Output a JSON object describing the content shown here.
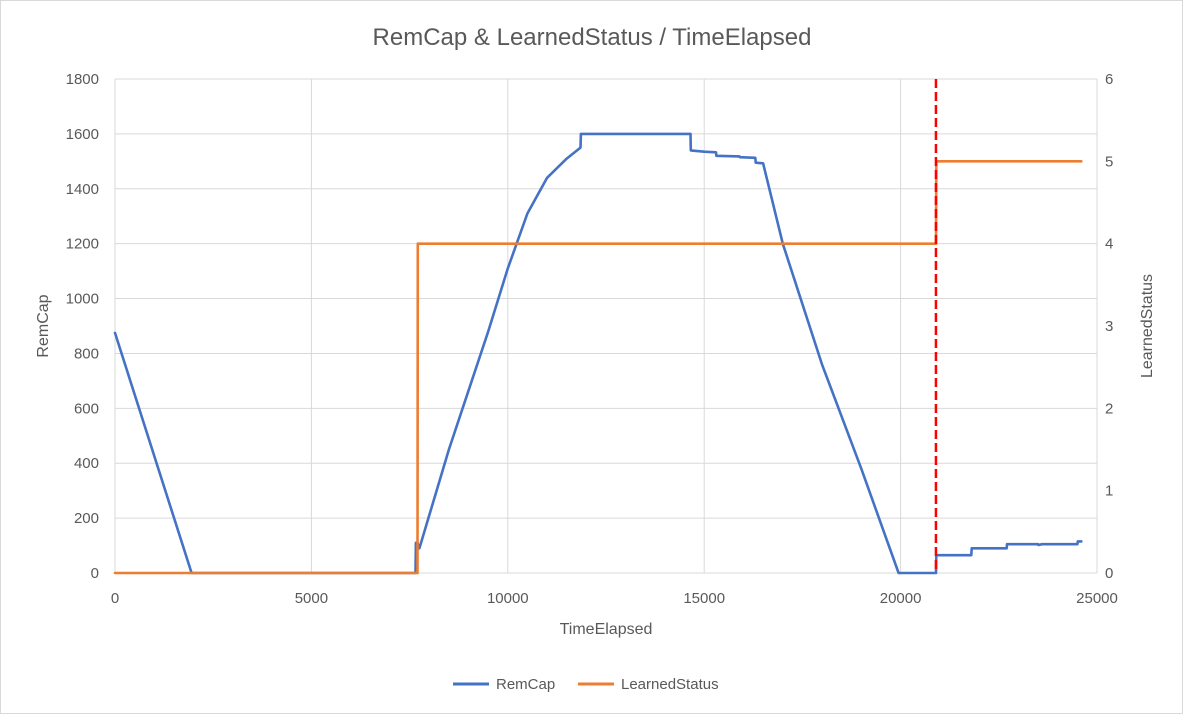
{
  "chart_data": {
    "type": "line",
    "title": "RemCap & LearnedStatus / TimeElapsed",
    "xlabel": "TimeElapsed",
    "ylabel": "RemCap",
    "y2label": "LearnedStatus",
    "xlim": [
      0,
      25000
    ],
    "ylim": [
      0,
      1800
    ],
    "y2lim": [
      0,
      6
    ],
    "xticks": [
      "0",
      "5000",
      "10000",
      "15000",
      "20000",
      "25000"
    ],
    "yticks": [
      "0",
      "200",
      "400",
      "600",
      "800",
      "1000",
      "1200",
      "1400",
      "1600",
      "1800"
    ],
    "y2ticks": [
      "0",
      "1",
      "2",
      "3",
      "4",
      "5",
      "6"
    ],
    "grid": true,
    "legend_position": "bottom",
    "series": [
      {
        "name": "RemCap",
        "axis": "left",
        "color": "#4472c4",
        "points": [
          [
            0,
            875
          ],
          [
            1950,
            0
          ],
          [
            7650,
            0
          ],
          [
            7660,
            110
          ],
          [
            7700,
            110
          ],
          [
            7750,
            90
          ],
          [
            8500,
            450
          ],
          [
            9500,
            880
          ],
          [
            10000,
            1110
          ],
          [
            10500,
            1310
          ],
          [
            11000,
            1440
          ],
          [
            11500,
            1510
          ],
          [
            11850,
            1550
          ],
          [
            11860,
            1600
          ],
          [
            14650,
            1600
          ],
          [
            14660,
            1540
          ],
          [
            15000,
            1535
          ],
          [
            15300,
            1533
          ],
          [
            15310,
            1520
          ],
          [
            15900,
            1518
          ],
          [
            15910,
            1515
          ],
          [
            16300,
            1513
          ],
          [
            16310,
            1495
          ],
          [
            16500,
            1493
          ],
          [
            17000,
            1200
          ],
          [
            18000,
            760
          ],
          [
            19000,
            380
          ],
          [
            19950,
            0
          ],
          [
            20900,
            0
          ],
          [
            20910,
            65
          ],
          [
            21800,
            65
          ],
          [
            21810,
            90
          ],
          [
            22700,
            90
          ],
          [
            22710,
            105
          ],
          [
            23500,
            105
          ],
          [
            23510,
            102
          ],
          [
            23600,
            105
          ],
          [
            24500,
            105
          ],
          [
            24510,
            115
          ],
          [
            24600,
            115
          ]
        ]
      },
      {
        "name": "LearnedStatus",
        "axis": "right",
        "color": "#ed7d31",
        "points": [
          [
            0,
            0
          ],
          [
            7700,
            0
          ],
          [
            7710,
            4
          ],
          [
            20900,
            4
          ],
          [
            20910,
            5
          ],
          [
            24600,
            5
          ]
        ]
      }
    ],
    "annotations": [
      {
        "type": "vline",
        "x": 20900,
        "color": "#ff0000",
        "style": "dashed"
      }
    ]
  }
}
